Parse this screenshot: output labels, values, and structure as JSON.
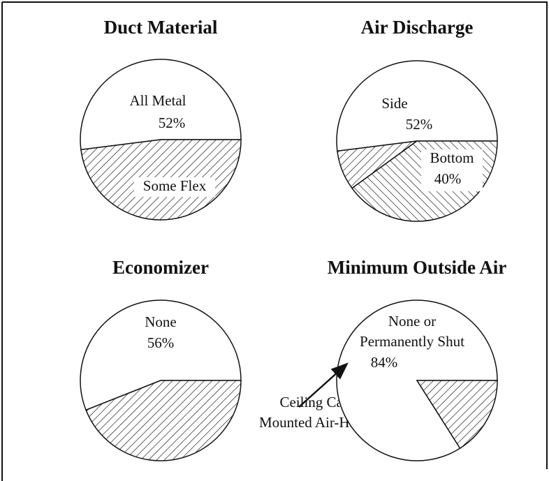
{
  "chart_data": [
    {
      "type": "pie",
      "title": "Duct Material",
      "categories": [
        "All Metal",
        "Some Flex"
      ],
      "values": [
        52,
        48
      ],
      "value_labels": [
        "52%",
        null
      ],
      "hatches": [
        "none",
        "forward"
      ]
    },
    {
      "type": "pie",
      "title": "Air Discharge",
      "categories": [
        "Side",
        "Ceiling Cavity\nMounted Air-Handler",
        "Bottom"
      ],
      "values": [
        52,
        8,
        40
      ],
      "value_labels": [
        "52%",
        null,
        "40%"
      ],
      "hatches": [
        "none",
        "forward",
        "backward"
      ]
    },
    {
      "type": "pie",
      "title": "Economizer",
      "categories": [
        "None",
        null
      ],
      "values": [
        56,
        44
      ],
      "value_labels": [
        "56%",
        null
      ],
      "hatches": [
        "none",
        "forward"
      ]
    },
    {
      "type": "pie",
      "title": "Minimum Outside Air",
      "categories": [
        "None or\nPermanently Shut",
        null
      ],
      "values": [
        84,
        16
      ],
      "value_labels": [
        "84%",
        null
      ],
      "hatches": [
        "none",
        "forward"
      ]
    }
  ]
}
